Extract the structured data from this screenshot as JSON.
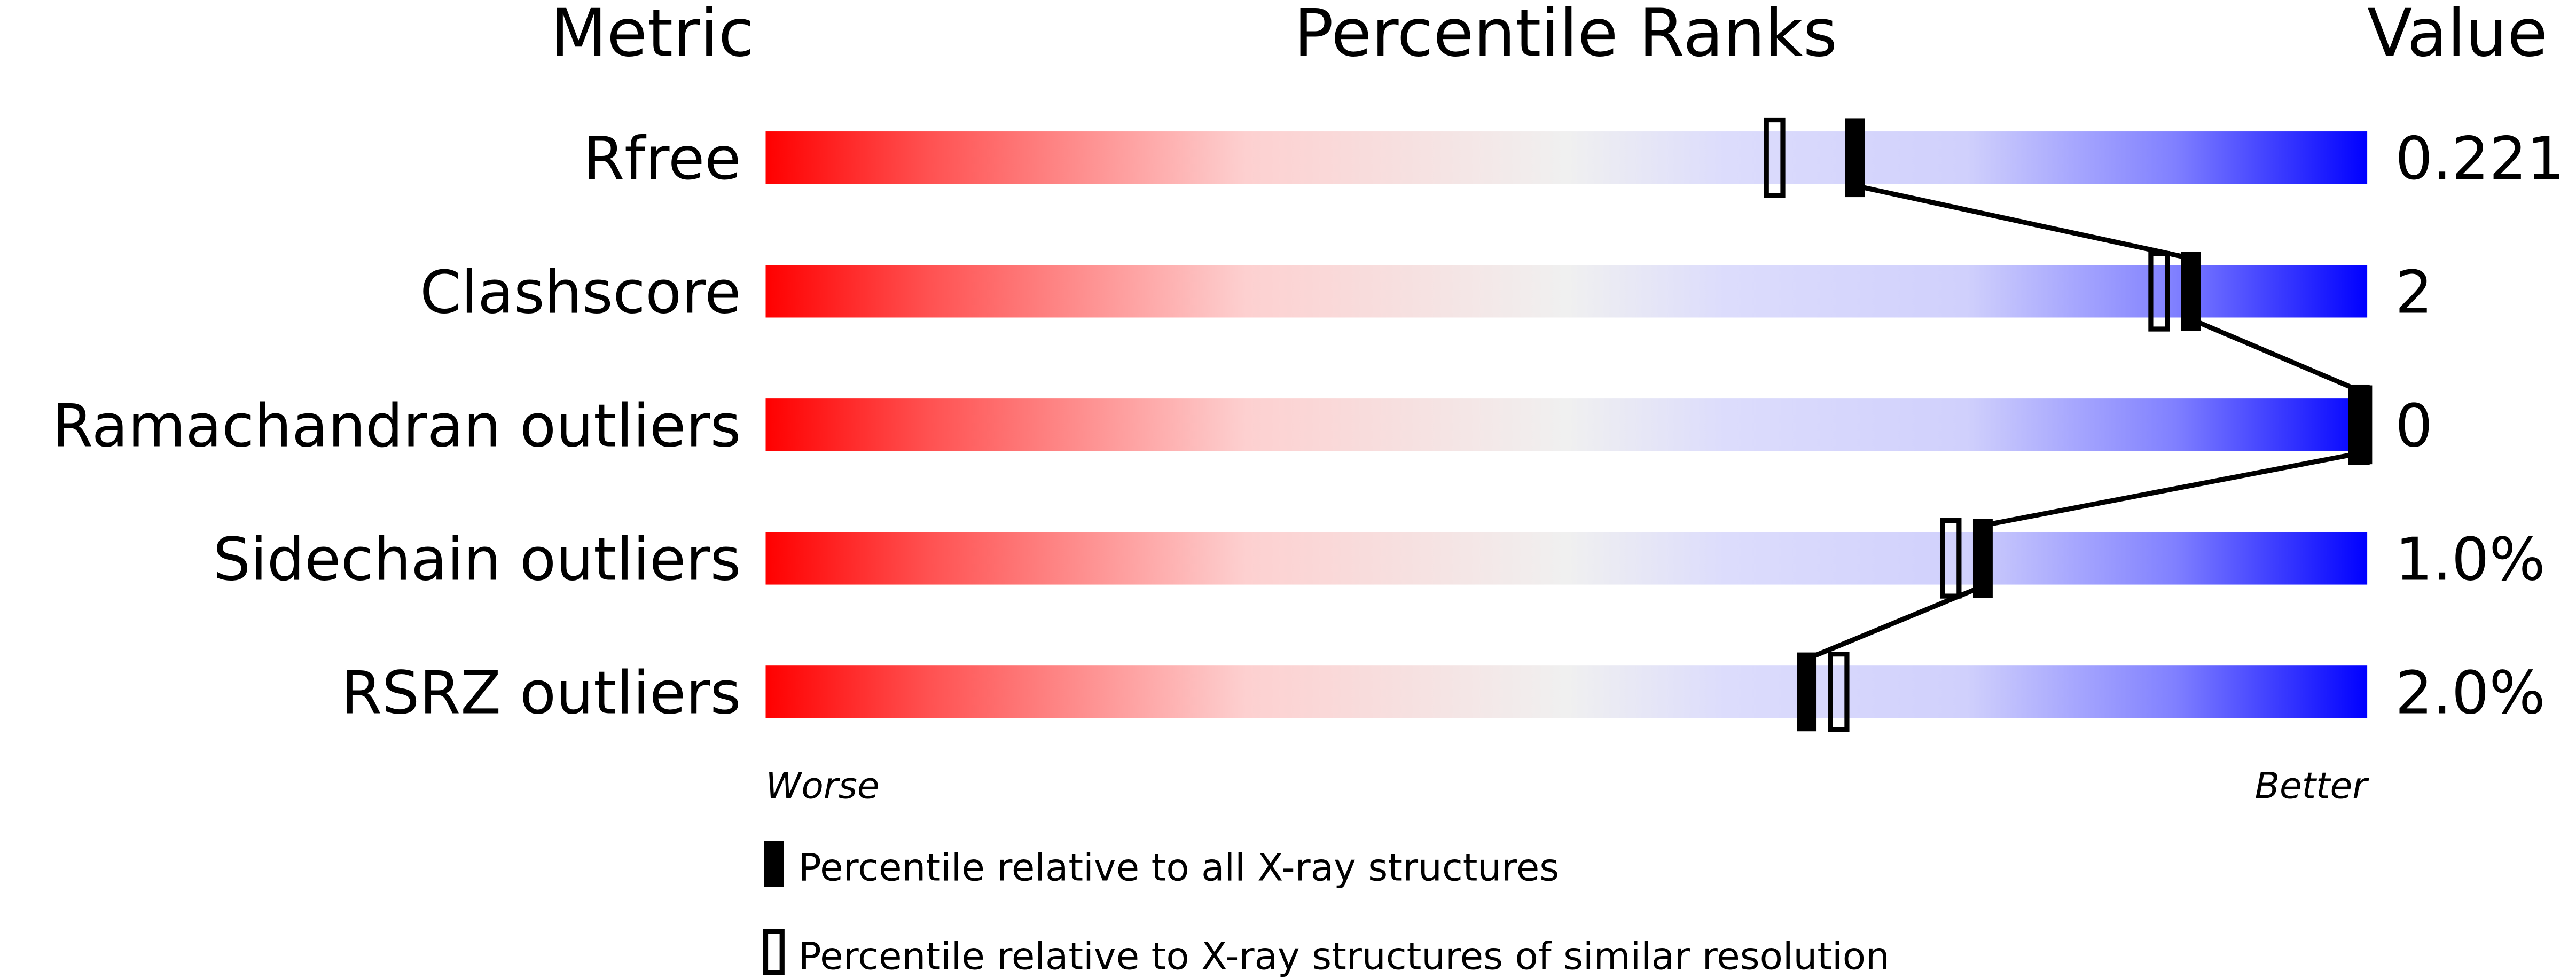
{
  "chart_data": {
    "type": "bar",
    "title": "Percentile Ranks",
    "column_headers": {
      "metric": "Metric",
      "ranks": "Percentile Ranks",
      "value": "Value"
    },
    "xlim": [
      0,
      100
    ],
    "axis_labels": {
      "left": "Worse",
      "right": "Better"
    },
    "gradient_colors": [
      "#ff0000",
      "#f0f0f0",
      "#0000ff"
    ],
    "metrics": [
      {
        "name": "Rfree",
        "value": "0.221",
        "percentile_all": 68,
        "percentile_similar": 63
      },
      {
        "name": "Clashscore",
        "value": "2",
        "percentile_all": 89,
        "percentile_similar": 87
      },
      {
        "name": "Ramachandran outliers",
        "value": "0",
        "percentile_all": 100,
        "percentile_similar": 100
      },
      {
        "name": "Sidechain outliers",
        "value": "1.0%",
        "percentile_all": 76,
        "percentile_similar": 74
      },
      {
        "name": "RSRZ outliers",
        "value": "2.0%",
        "percentile_all": 65,
        "percentile_similar": 67
      }
    ],
    "legend": [
      {
        "marker": "filled",
        "label": "Percentile relative to all X-ray structures"
      },
      {
        "marker": "open",
        "label": "Percentile relative to X-ray structures of similar resolution"
      }
    ]
  }
}
